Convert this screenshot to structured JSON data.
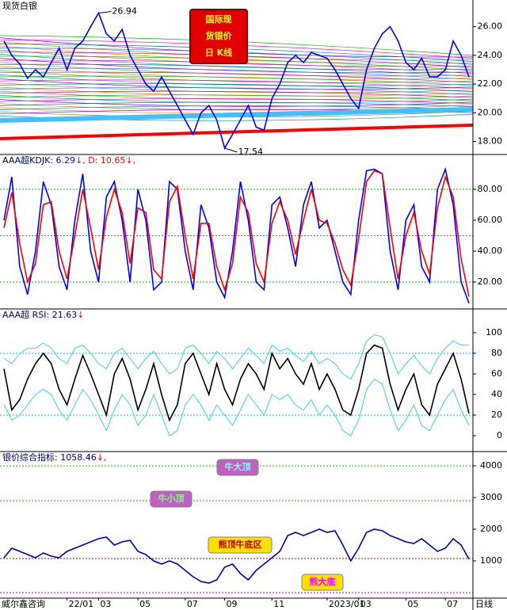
{
  "chart_data": [
    {
      "type": "line",
      "title": "现货白银",
      "box_title": [
        "国际现",
        "货银价",
        "日 K线"
      ],
      "ylim": [
        17.1,
        27.3
      ],
      "yticks": [
        {
          "value": 18,
          "label": "18.00"
        },
        {
          "value": 20,
          "label": "20.00"
        },
        {
          "value": 22,
          "label": "22.00"
        },
        {
          "value": 24,
          "label": "24.00"
        },
        {
          "value": 26,
          "label": "26.00"
        }
      ],
      "fan_colors": [
        "#00c000",
        "#8000ff",
        "#ff00ff",
        "#c08000",
        "#008080",
        "#ff8000",
        "#0080ff",
        "#808000",
        "#c000c0",
        "#00a0a0"
      ],
      "series": [
        {
          "color": "#0000ff",
          "values": [
            25.0,
            24.0,
            23.4,
            22.4,
            23.0,
            22.5,
            23.5,
            24.5,
            23.0,
            24.5,
            25.0,
            26.0,
            26.94,
            25.5,
            25.0,
            25.8,
            24.0,
            23.0,
            22.0,
            21.5,
            22.5,
            21.5,
            20.5,
            19.5,
            18.5,
            20.0,
            20.5,
            19.5,
            17.54,
            18.5,
            19.5,
            20.5,
            19.0,
            18.8,
            21.0,
            22.0,
            23.5,
            24.0,
            23.5,
            24.2,
            24.0,
            23.8,
            23.0,
            22.0,
            21.0,
            20.3,
            23.0,
            24.5,
            25.5,
            26.0,
            25.0,
            23.5,
            23.0,
            23.8,
            22.5,
            22.5,
            23.0,
            25.0,
            24.0,
            22.5
          ]
        }
      ],
      "annotations": [
        26.94,
        17.54
      ]
    },
    {
      "type": "line",
      "header": [
        {
          "text": "AAA超KDJ",
          "color": "#000080"
        },
        {
          "text": "K: 6.29",
          "color": "#0000ff"
        },
        {
          "text": "↓",
          "color": "#ff0000"
        },
        {
          "text": ", D: 10.65",
          "color": "#ff0000"
        },
        {
          "text": "↓,",
          "color": "#ff0000"
        }
      ],
      "ylim": [
        2.6,
        101.5
      ],
      "yticks": [
        {
          "value": 20,
          "label": "20.00"
        },
        {
          "value": 40,
          "label": "40.00"
        },
        {
          "value": 60,
          "label": "60.00"
        },
        {
          "value": 80,
          "label": "80.00"
        }
      ],
      "ref_lines": [
        {
          "value": 20,
          "color": "#00c000"
        },
        {
          "value": 50,
          "color": "#00c000"
        },
        {
          "value": 80,
          "color": "#00c000"
        }
      ],
      "series": [
        {
          "color": "#0000ff",
          "values": [
            60,
            88,
            30,
            12,
            40,
            85,
            70,
            30,
            15,
            60,
            90,
            40,
            20,
            75,
            85,
            60,
            20,
            80,
            60,
            15,
            20,
            85,
            80,
            40,
            15,
            70,
            55,
            20,
            10,
            40,
            85,
            60,
            20,
            15,
            70,
            75,
            55,
            30,
            70,
            85,
            55,
            60,
            40,
            20,
            12,
            60,
            92,
            93,
            90,
            40,
            15,
            60,
            70,
            30,
            20,
            80,
            93,
            70,
            20,
            6.29
          ]
        },
        {
          "color": "#ff0000",
          "values": [
            55,
            78,
            45,
            20,
            32,
            70,
            72,
            40,
            22,
            50,
            80,
            55,
            28,
            62,
            80,
            65,
            32,
            68,
            65,
            28,
            22,
            72,
            82,
            50,
            22,
            58,
            58,
            30,
            15,
            32,
            75,
            65,
            32,
            20,
            58,
            72,
            60,
            38,
            60,
            80,
            60,
            58,
            45,
            28,
            18,
            48,
            85,
            92,
            90,
            55,
            22,
            50,
            65,
            40,
            25,
            68,
            88,
            75,
            35,
            10.65
          ]
        }
      ]
    },
    {
      "type": "line",
      "header": [
        {
          "text": "AAA超 RSI: 21.63",
          "color": "#000080"
        },
        {
          "text": "↓",
          "color": "#ff0000"
        }
      ],
      "ylim": [
        -15.4,
        121.5
      ],
      "yticks": [
        0,
        20,
        40,
        60,
        80,
        100
      ],
      "ref_lines": [
        {
          "value": 20,
          "color": "#00c8c8"
        },
        {
          "value": 80,
          "color": "#00c8c8"
        }
      ],
      "series": [
        {
          "color": "#40d0e0",
          "values": [
            75,
            70,
            80,
            85,
            85,
            90,
            85,
            75,
            70,
            85,
            88,
            80,
            70,
            65,
            80,
            85,
            75,
            65,
            75,
            82,
            70,
            60,
            65,
            85,
            88,
            80,
            70,
            82,
            75,
            65,
            75,
            85,
            78,
            70,
            88,
            82,
            85,
            78,
            72,
            82,
            70,
            75,
            70,
            60,
            55,
            70,
            92,
            98,
            96,
            80,
            60,
            70,
            78,
            68,
            60,
            75,
            85,
            92,
            88,
            88
          ]
        },
        {
          "color": "#40d0e0",
          "values": [
            30,
            15,
            20,
            30,
            40,
            45,
            40,
            25,
            15,
            30,
            45,
            35,
            20,
            5,
            25,
            40,
            30,
            10,
            20,
            40,
            20,
            0,
            5,
            30,
            40,
            30,
            15,
            30,
            20,
            10,
            25,
            40,
            30,
            20,
            40,
            35,
            40,
            30,
            25,
            35,
            20,
            30,
            20,
            5,
            0,
            15,
            45,
            55,
            50,
            25,
            5,
            15,
            30,
            10,
            5,
            20,
            35,
            45,
            25,
            10
          ]
        },
        {
          "color": "#000000",
          "values": [
            65,
            25,
            35,
            55,
            70,
            80,
            70,
            45,
            30,
            55,
            78,
            60,
            40,
            20,
            60,
            75,
            55,
            25,
            45,
            70,
            40,
            15,
            30,
            70,
            80,
            60,
            40,
            70,
            45,
            30,
            55,
            70,
            60,
            45,
            80,
            65,
            75,
            60,
            50,
            70,
            45,
            60,
            45,
            25,
            20,
            45,
            80,
            88,
            85,
            50,
            25,
            45,
            60,
            30,
            20,
            50,
            65,
            80,
            55,
            21.63
          ]
        }
      ]
    },
    {
      "type": "line",
      "header": [
        {
          "text": "银价综合指标: 1058.46",
          "color": "#000080"
        },
        {
          "text": "↓,",
          "color": "#ff0000"
        }
      ],
      "ylim": [
        -175,
        4400
      ],
      "yticks": [
        1000,
        2000,
        3000,
        4000
      ],
      "ref_lines": [
        {
          "value": 4000,
          "color": "#00c000"
        },
        {
          "value": 2900,
          "color": "#00c000"
        },
        {
          "value": 1075,
          "color": "#c00000"
        },
        {
          "value": 0,
          "color": "#c000c0"
        }
      ],
      "zones": [
        "牛大顶",
        "牛小顶",
        "熊顶牛底区",
        "熊大底"
      ],
      "series": [
        {
          "color": "#0000c0",
          "values": [
            1100,
            1400,
            1300,
            1200,
            1100,
            1250,
            1150,
            1100,
            1300,
            1400,
            1500,
            1600,
            1700,
            1750,
            1500,
            1600,
            1650,
            1300,
            1200,
            1000,
            900,
            1000,
            900,
            700,
            500,
            350,
            300,
            400,
            800,
            900,
            600,
            400,
            700,
            900,
            1100,
            1300,
            1800,
            1900,
            1800,
            1900,
            2000,
            1900,
            1950,
            1500,
            1000,
            1400,
            1900,
            2000,
            1950,
            1800,
            1700,
            1600,
            1550,
            1700,
            1500,
            1300,
            1400,
            1700,
            1500,
            1058.46
          ]
        }
      ],
      "categories": [
        null,
        null,
        null,
        null,
        null,
        null,
        null,
        null,
        "22/01",
        null,
        null,
        null,
        "03",
        null,
        null,
        null,
        null,
        "05",
        null,
        null,
        null,
        null,
        null,
        "07",
        null,
        null,
        null,
        null,
        "09",
        null,
        null,
        null,
        null,
        null,
        "11",
        null,
        null,
        null,
        null,
        null,
        null,
        "2023/01",
        null,
        null,
        null,
        "03",
        null,
        null,
        null,
        null,
        null,
        "05",
        null,
        null,
        null,
        null,
        "07",
        null,
        null,
        null
      ]
    }
  ],
  "source": "威尔鑫咨询",
  "period": "日线"
}
